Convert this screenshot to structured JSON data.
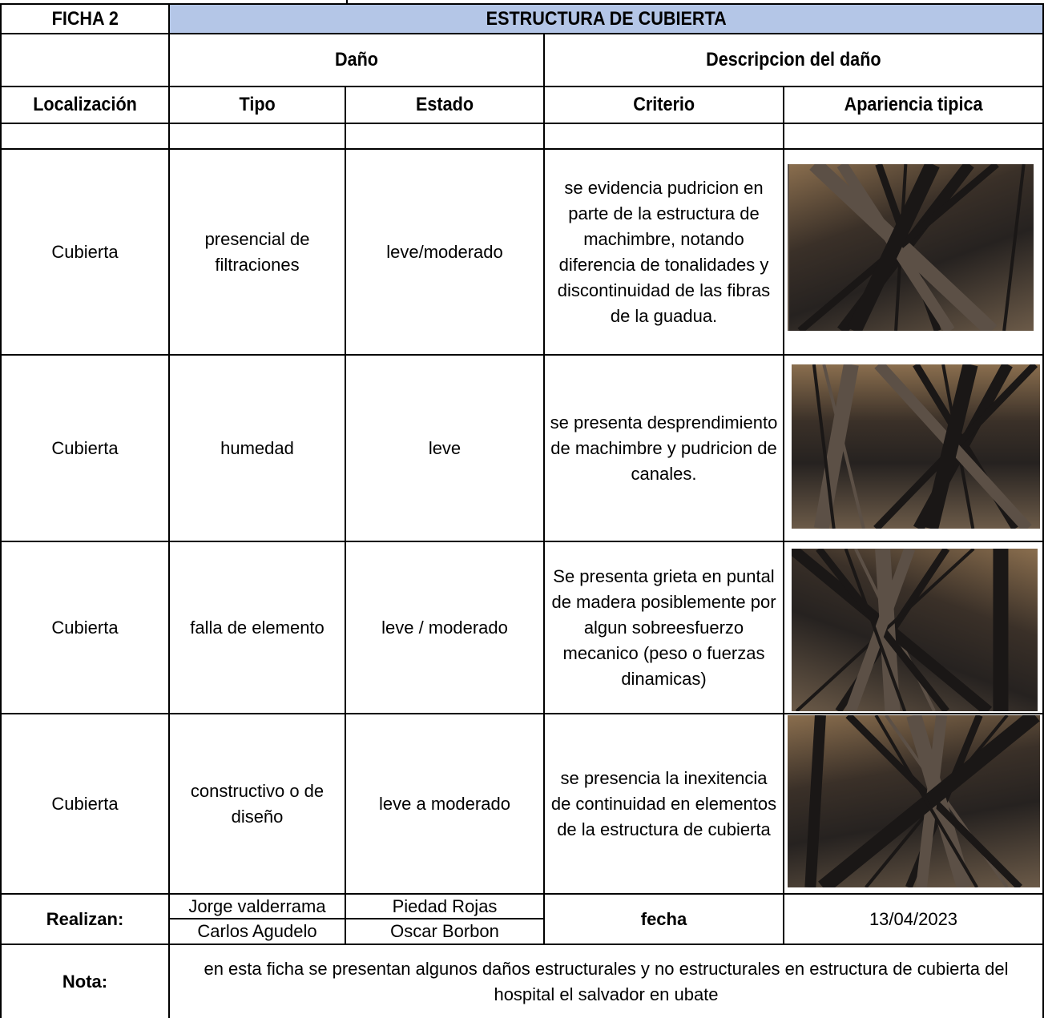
{
  "header": {
    "ficha": "FICHA 2",
    "title": "ESTRUCTURA DE CUBIERTA"
  },
  "group_headers": [
    "Daño",
    "Descripcion del daño"
  ],
  "columns": [
    "Localización",
    "Tipo",
    "Estado",
    "Criterio",
    "Apariencia tipica"
  ],
  "rows": [
    {
      "localizacion": "Cubierta",
      "tipo": "presencial de filtraciones",
      "estado": "leve/moderado",
      "criterio": "se evidencia pudricion en parte de la estructura de machimbre, notando diferencia de tonalidades y discontinuidad de las fibras de la guadua."
    },
    {
      "localizacion": "Cubierta",
      "tipo": "humedad",
      "estado": "leve",
      "criterio": "se presenta desprendimiento de machimbre y pudricion de canales."
    },
    {
      "localizacion": "Cubierta",
      "tipo": "falla de elemento",
      "estado": "leve / moderado",
      "criterio": "Se presenta grieta en puntal de madera posiblemente por algun sobreesfuerzo mecanico (peso o fuerzas dinamicas)"
    },
    {
      "localizacion": "Cubierta",
      "tipo": "constructivo o de diseño",
      "estado": "leve a moderado",
      "criterio": "se presencia la inexitencia de continuidad en elementos de la estructura de cubierta"
    }
  ],
  "footer": {
    "realizan_label": "Realizan:",
    "authors": [
      "Jorge valderrama",
      "Piedad Rojas",
      "Carlos Agudelo",
      "Oscar Borbon"
    ],
    "fecha_label": "fecha",
    "fecha": "13/04/2023",
    "nota_label": "Nota:",
    "nota": "en esta ficha se presentan algunos daños estructurales y no estructurales en estructura de cubierta del hospital el salvador en ubate"
  }
}
